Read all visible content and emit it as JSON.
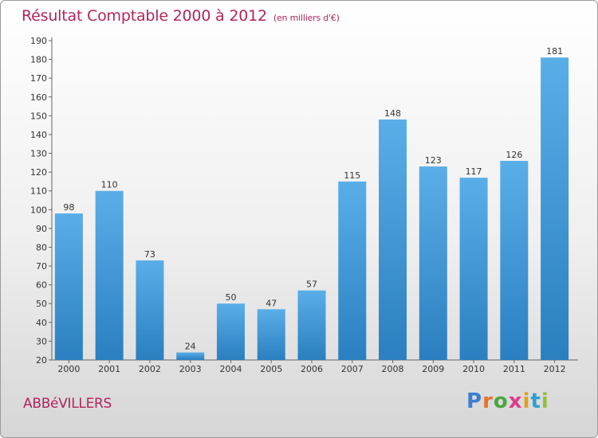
{
  "chart_data": {
    "type": "bar",
    "title": "Résultat Comptable 2000 à 2012",
    "unit": "(en milliers d'€)",
    "categories": [
      "2000",
      "2001",
      "2002",
      "2003",
      "2004",
      "2005",
      "2006",
      "2007",
      "2008",
      "2009",
      "2010",
      "2011",
      "2012"
    ],
    "values": [
      98,
      110,
      73,
      24,
      50,
      47,
      57,
      115,
      148,
      123,
      117,
      126,
      181
    ],
    "ylim": [
      20,
      190
    ],
    "yticks": [
      20,
      30,
      40,
      50,
      60,
      70,
      80,
      90,
      100,
      110,
      120,
      130,
      140,
      150,
      160,
      170,
      180,
      190
    ],
    "xlabel": "",
    "ylabel": "",
    "bar_color_top": "#5aaee8",
    "bar_color_bottom": "#2a7fc0"
  },
  "commune": "ABBéVILLERS",
  "logo": {
    "letters": [
      "P",
      "r",
      "o",
      "x",
      "i",
      "t",
      "i"
    ],
    "colors": [
      "#3a7fd0",
      "#e4732a",
      "#4aa640",
      "#e03a8a",
      "#e0a020",
      "#2d9fd6",
      "#8fc23a"
    ]
  }
}
